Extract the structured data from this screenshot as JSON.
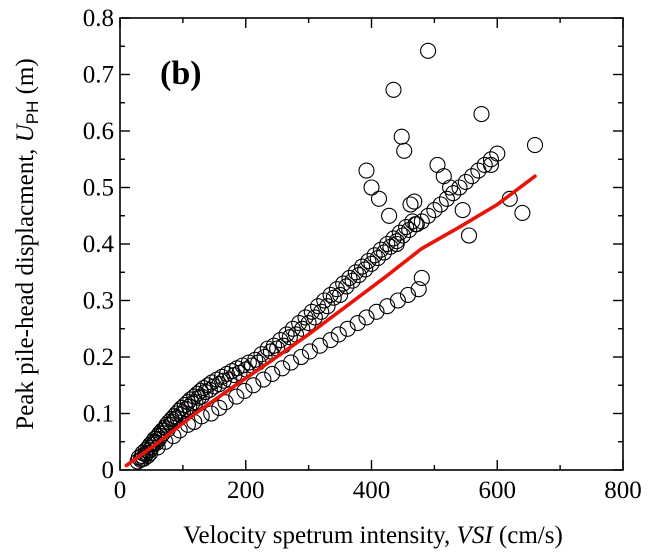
{
  "chart_data": {
    "type": "scatter",
    "panel_label": "(b)",
    "xlabel": {
      "prefix": "Velocity spetrum intensity, ",
      "symbol": "VSI",
      "unit": " (cm/s)"
    },
    "ylabel": {
      "prefix": "Peak pile-head displacment, ",
      "symbol": "U",
      "subscript": "PH",
      "unit": " (m)"
    },
    "xlim": [
      0,
      800
    ],
    "ylim": [
      0,
      0.8
    ],
    "x_ticks": [
      0,
      200,
      400,
      600,
      800
    ],
    "y_ticks": [
      0,
      0.1,
      0.2,
      0.3,
      0.4,
      0.5,
      0.6,
      0.7,
      0.8
    ],
    "x_tick_labels": [
      "0",
      "200",
      "400",
      "600",
      "800"
    ],
    "y_tick_labels": [
      "0",
      "0.1",
      "0.2",
      "0.3",
      "0.4",
      "0.5",
      "0.6",
      "0.7",
      "0.8"
    ],
    "grid": false,
    "legend": "none",
    "marker_color": "#000000",
    "fit_color": "#e8140c",
    "series": [
      {
        "kind": "scatter",
        "x": [
          28,
          30,
          33,
          35,
          36,
          38,
          40,
          41,
          43,
          44,
          45,
          47,
          48,
          50,
          52,
          53,
          55,
          56,
          58,
          60,
          62,
          63,
          65,
          67,
          68,
          70,
          72,
          74,
          76,
          78,
          80,
          82,
          84,
          86,
          88,
          90,
          92,
          94,
          96,
          98,
          100,
          103,
          105,
          108,
          110,
          112,
          115,
          118,
          120,
          123,
          125,
          128,
          130,
          133,
          136,
          140,
          143,
          146,
          150,
          154,
          158,
          162,
          165,
          170,
          174,
          178,
          182,
          186,
          190,
          195,
          200,
          205,
          210,
          215,
          220,
          225,
          230,
          235,
          240,
          245,
          250,
          255,
          260,
          265,
          270,
          275,
          280,
          285,
          290,
          295,
          300,
          305,
          310,
          315,
          320,
          325,
          330,
          335,
          340,
          345,
          350,
          355,
          360,
          365,
          370,
          375,
          380,
          385,
          390,
          395,
          400,
          405,
          410,
          415,
          420,
          425,
          430,
          435,
          440,
          445,
          450,
          455,
          460,
          465,
          470,
          480,
          490,
          500,
          510,
          520,
          530,
          540,
          550,
          560,
          570,
          580,
          590,
          600,
          620,
          640,
          660,
          35,
          48,
          60,
          72,
          85,
          95,
          108,
          118,
          130,
          145,
          158,
          168,
          185,
          198,
          212,
          228,
          242,
          258,
          272,
          288,
          302,
          318,
          335,
          348,
          362,
          378,
          392,
          408,
          425,
          442,
          458,
          475,
          392,
          400,
          412,
          428,
          435,
          440,
          448,
          452,
          462,
          468,
          472,
          480,
          490,
          505,
          515,
          525,
          545,
          555,
          575,
          590
        ],
        "y": [
          0.015,
          0.022,
          0.018,
          0.025,
          0.03,
          0.02,
          0.028,
          0.035,
          0.03,
          0.025,
          0.04,
          0.035,
          0.045,
          0.04,
          0.05,
          0.045,
          0.055,
          0.05,
          0.048,
          0.06,
          0.055,
          0.065,
          0.06,
          0.07,
          0.065,
          0.07,
          0.075,
          0.08,
          0.072,
          0.085,
          0.08,
          0.09,
          0.085,
          0.095,
          0.09,
          0.1,
          0.092,
          0.105,
          0.098,
          0.11,
          0.1,
          0.115,
          0.108,
          0.12,
          0.112,
          0.125,
          0.118,
          0.13,
          0.12,
          0.135,
          0.128,
          0.14,
          0.13,
          0.145,
          0.138,
          0.15,
          0.142,
          0.155,
          0.148,
          0.16,
          0.152,
          0.165,
          0.158,
          0.17,
          0.16,
          0.175,
          0.168,
          0.18,
          0.172,
          0.185,
          0.178,
          0.19,
          0.185,
          0.195,
          0.19,
          0.205,
          0.2,
          0.215,
          0.21,
          0.22,
          0.215,
          0.23,
          0.22,
          0.24,
          0.235,
          0.25,
          0.24,
          0.26,
          0.25,
          0.27,
          0.26,
          0.28,
          0.27,
          0.29,
          0.28,
          0.3,
          0.29,
          0.31,
          0.305,
          0.32,
          0.31,
          0.33,
          0.325,
          0.34,
          0.335,
          0.35,
          0.345,
          0.36,
          0.355,
          0.37,
          0.365,
          0.38,
          0.375,
          0.39,
          0.385,
          0.4,
          0.395,
          0.41,
          0.405,
          0.42,
          0.415,
          0.43,
          0.425,
          0.44,
          0.435,
          0.44,
          0.45,
          0.46,
          0.47,
          0.48,
          0.49,
          0.5,
          0.51,
          0.52,
          0.53,
          0.54,
          0.55,
          0.56,
          0.48,
          0.455,
          0.575,
          0.02,
          0.03,
          0.04,
          0.05,
          0.06,
          0.07,
          0.08,
          0.085,
          0.095,
          0.1,
          0.11,
          0.12,
          0.13,
          0.14,
          0.15,
          0.16,
          0.17,
          0.18,
          0.19,
          0.2,
          0.21,
          0.22,
          0.23,
          0.24,
          0.25,
          0.26,
          0.27,
          0.28,
          0.29,
          0.3,
          0.31,
          0.32,
          0.53,
          0.5,
          0.48,
          0.45,
          0.673,
          0.4,
          0.59,
          0.565,
          0.47,
          0.475,
          0.435,
          0.34,
          0.742,
          0.54,
          0.52,
          0.5,
          0.46,
          0.415,
          0.63,
          0.54
        ]
      },
      {
        "kind": "line",
        "x": [
          10,
          60,
          120,
          180,
          240,
          300,
          360,
          420,
          480,
          540,
          600,
          660
        ],
        "y": [
          0.008,
          0.048,
          0.1,
          0.147,
          0.193,
          0.24,
          0.29,
          0.34,
          0.392,
          0.43,
          0.47,
          0.52
        ]
      }
    ]
  }
}
